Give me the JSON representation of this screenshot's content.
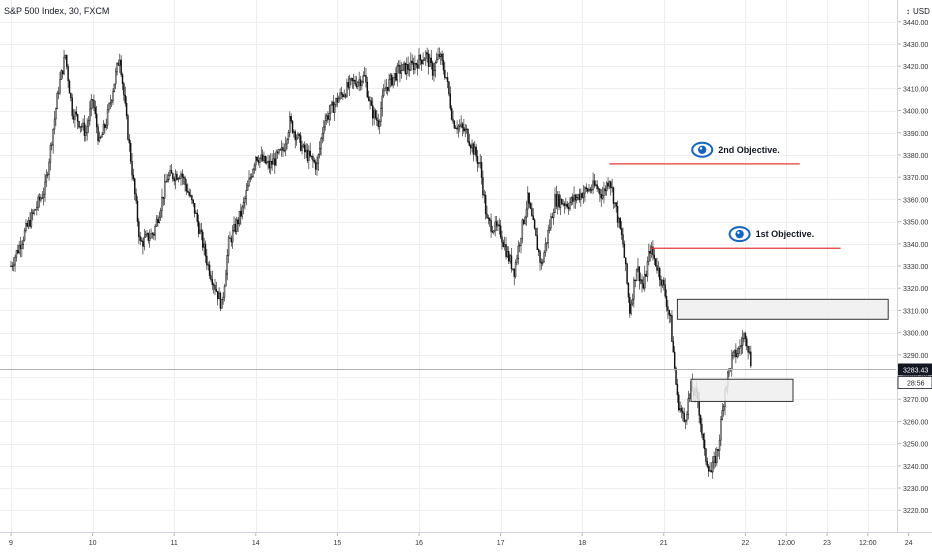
{
  "header": {
    "symbol_line": "S&P 500 Index, 30, FXCM",
    "currency": "USD",
    "currency_caret": "↕"
  },
  "chart_data": {
    "type": "candlestick",
    "title": "S&P 500 Index, 30, FXCM",
    "ylim": [
      3212,
      3448
    ],
    "y_ticks": [
      "3440.00",
      "3430.00",
      "3420.00",
      "3410.00",
      "3400.00",
      "3390.00",
      "3380.00",
      "3370.00",
      "3360.00",
      "3350.00",
      "3340.00",
      "3330.00",
      "3320.00",
      "3310.00",
      "3300.00",
      "3290.00",
      "3280.00",
      "3270.00",
      "3260.00",
      "3250.00",
      "3240.00",
      "3230.00",
      "3220.00"
    ],
    "y_tick_values": [
      3440,
      3430,
      3420,
      3410,
      3400,
      3390,
      3380,
      3370,
      3360,
      3350,
      3340,
      3330,
      3320,
      3310,
      3300,
      3290,
      3280,
      3270,
      3260,
      3250,
      3240,
      3230,
      3220
    ],
    "x_ticks": [
      "9",
      "10",
      "11",
      "14",
      "15",
      "16",
      "17",
      "18",
      "21",
      "22",
      "12:00",
      "23",
      "12:00",
      "24"
    ],
    "x_tick_index": [
      0,
      12,
      24,
      36,
      48,
      60,
      72,
      84,
      96,
      108,
      114,
      120,
      126,
      132
    ],
    "current_price": {
      "value": 3283.43,
      "label": "3283.43",
      "countdown": "28:56"
    },
    "price_path_anchors": [
      [
        0,
        3330
      ],
      [
        2,
        3345
      ],
      [
        5,
        3365
      ],
      [
        7,
        3410
      ],
      [
        8,
        3425
      ],
      [
        9,
        3400
      ],
      [
        11,
        3390
      ],
      [
        12,
        3405
      ],
      [
        13,
        3385
      ],
      [
        14,
        3395
      ],
      [
        16,
        3425
      ],
      [
        17,
        3395
      ],
      [
        19,
        3340
      ],
      [
        21,
        3345
      ],
      [
        23,
        3370
      ],
      [
        25,
        3372
      ],
      [
        27,
        3355
      ],
      [
        29,
        3330
      ],
      [
        31,
        3312
      ],
      [
        32,
        3340
      ],
      [
        34,
        3355
      ],
      [
        36,
        3380
      ],
      [
        38,
        3375
      ],
      [
        40,
        3382
      ],
      [
        41,
        3395
      ],
      [
        43,
        3382
      ],
      [
        45,
        3375
      ],
      [
        46,
        3395
      ],
      [
        48,
        3405
      ],
      [
        50,
        3412
      ],
      [
        52,
        3415
      ],
      [
        53,
        3400
      ],
      [
        54,
        3395
      ],
      [
        55,
        3410
      ],
      [
        57,
        3418
      ],
      [
        59,
        3420
      ],
      [
        61,
        3425
      ],
      [
        62,
        3418
      ],
      [
        63,
        3425
      ],
      [
        64,
        3415
      ],
      [
        65,
        3395
      ],
      [
        67,
        3390
      ],
      [
        69,
        3375
      ],
      [
        70,
        3350
      ],
      [
        72,
        3345
      ],
      [
        73,
        3335
      ],
      [
        74,
        3328
      ],
      [
        75,
        3345
      ],
      [
        76,
        3360
      ],
      [
        77,
        3345
      ],
      [
        78,
        3330
      ],
      [
        79,
        3345
      ],
      [
        80,
        3360
      ],
      [
        82,
        3358
      ],
      [
        84,
        3363
      ],
      [
        86,
        3366
      ],
      [
        87,
        3362
      ],
      [
        88,
        3370
      ],
      [
        89,
        3355
      ],
      [
        90,
        3340
      ],
      [
        91,
        3310
      ],
      [
        92,
        3330
      ],
      [
        93,
        3320
      ],
      [
        94,
        3338
      ],
      [
        95,
        3330
      ],
      [
        96,
        3320
      ],
      [
        97,
        3305
      ],
      [
        98,
        3270
      ],
      [
        99,
        3260
      ],
      [
        100,
        3275
      ],
      [
        101,
        3270
      ],
      [
        102,
        3245
      ],
      [
        103,
        3237
      ],
      [
        104,
        3248
      ],
      [
        105,
        3275
      ],
      [
        106,
        3288
      ],
      [
        107,
        3292
      ],
      [
        108,
        3300
      ],
      [
        109,
        3283.43
      ]
    ],
    "annotations": [
      {
        "type": "hline",
        "price": 3376,
        "from_index": 88,
        "to_index": 116,
        "color": "#e53935"
      },
      {
        "type": "hline",
        "price": 3338,
        "from_index": 94,
        "to_index": 122,
        "color": "#e53935"
      },
      {
        "type": "zone",
        "top": 3315,
        "bottom": 3306,
        "from_index": 98,
        "to_index": 129
      },
      {
        "type": "zone",
        "top": 3279,
        "bottom": 3269,
        "from_index": 100,
        "to_index": 115
      },
      {
        "type": "label",
        "text": "2nd Objective.",
        "price": 3381,
        "index": 104,
        "icon": "eye-icon"
      },
      {
        "type": "label",
        "text": "1st Objective.",
        "price": 3343,
        "index": 109.5,
        "icon": "eye-icon"
      }
    ]
  },
  "colors": {
    "candle": "#111111",
    "grid": "#eeeeee",
    "axis_text": "#333333",
    "red_line": "#e53935",
    "eye_blue": "#1565c0",
    "zone_fill": "#eeeeee",
    "zone_stroke": "#333333",
    "price_line": "#b0b0b0",
    "price_badge": "#131722"
  }
}
